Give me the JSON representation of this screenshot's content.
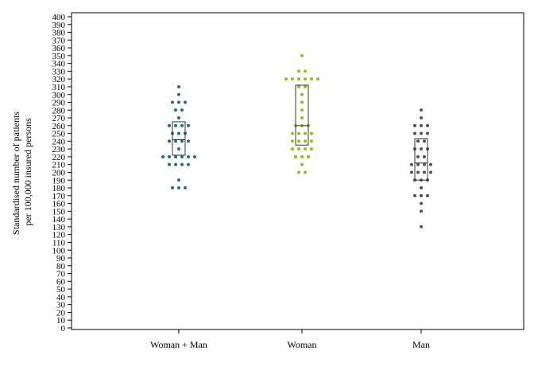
{
  "chart_data": {
    "type": "scatter",
    "title": "",
    "xlabel": "",
    "ylabel": "Standardised number of patients per 100,000 insured persons",
    "ylabel_lines": [
      "Standardised number of patients",
      "per 100,000 insured persons"
    ],
    "categories": [
      "Woman + Man",
      "Woman",
      "Man"
    ],
    "ylim": [
      0,
      400
    ],
    "yticks": [
      0,
      10,
      20,
      30,
      40,
      50,
      60,
      70,
      80,
      90,
      100,
      110,
      120,
      130,
      140,
      150,
      160,
      170,
      180,
      190,
      200,
      210,
      220,
      230,
      240,
      250,
      260,
      270,
      280,
      290,
      300,
      310,
      320,
      330,
      340,
      350,
      360,
      370,
      380,
      390,
      400
    ],
    "grid": false,
    "legend": "none",
    "series": [
      {
        "category": "Woman + Man",
        "color": "#2a6e6c",
        "box": {
          "q1": 222,
          "median": 242,
          "q3": 265
        },
        "points": [
          310,
          300,
          290,
          290,
          290,
          280,
          280,
          270,
          260,
          260,
          260,
          260,
          250,
          250,
          250,
          240,
          240,
          240,
          240,
          230,
          220,
          220,
          220,
          220,
          220,
          220,
          210,
          210,
          210,
          210,
          190,
          180,
          180,
          180
        ]
      },
      {
        "category": "Woman",
        "color": "#8cc21a",
        "box": {
          "q1": 235,
          "median": 260,
          "q3": 312
        },
        "points": [
          350,
          330,
          330,
          320,
          320,
          320,
          320,
          320,
          320,
          310,
          310,
          300,
          290,
          280,
          270,
          260,
          260,
          260,
          250,
          250,
          250,
          250,
          240,
          240,
          240,
          240,
          230,
          230,
          230,
          230,
          220,
          220,
          220,
          210,
          200,
          200
        ]
      },
      {
        "category": "Man",
        "color": "#555555",
        "box": {
          "q1": 190,
          "median": 212,
          "q3": 243
        },
        "points": [
          280,
          270,
          260,
          260,
          260,
          250,
          250,
          250,
          240,
          240,
          230,
          230,
          230,
          220,
          220,
          210,
          210,
          210,
          210,
          200,
          200,
          200,
          200,
          190,
          190,
          190,
          180,
          170,
          170,
          170,
          160,
          150,
          130
        ]
      }
    ]
  }
}
